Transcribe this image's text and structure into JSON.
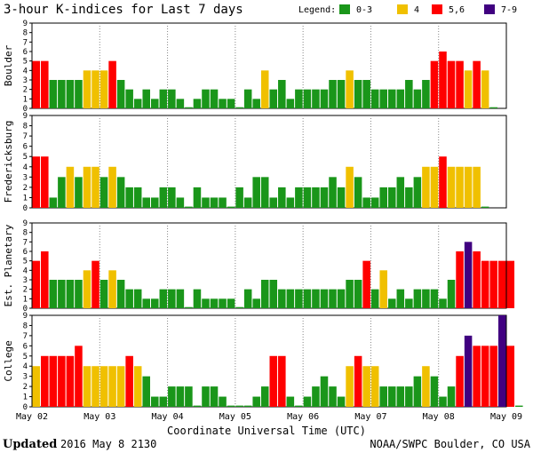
{
  "chart_data": {
    "type": "bar",
    "title": "3-hour K-indices for Last 7 days",
    "legend": {
      "label": "Legend:",
      "placement": "top-right",
      "entries": [
        {
          "label": "0-3",
          "color": "#1a961a"
        },
        {
          "label": "4",
          "color": "#f0c000"
        },
        {
          "label": "5,6",
          "color": "#ff0000"
        },
        {
          "label": "7-9",
          "color": "#400080"
        }
      ]
    },
    "color_rule": {
      "quiet": "#1a961a",
      "unsettled": "#f0c000",
      "storm": "#ff0000",
      "severe": "#400080"
    },
    "xlabel": "Coordinate Universal Time (UTC)",
    "ylim": [
      0,
      9
    ],
    "yticks": [
      "0",
      "1",
      "2",
      "3",
      "4",
      "5",
      "6",
      "7",
      "8",
      "9"
    ],
    "day_labels": [
      "May 02",
      "May 03",
      "May 04",
      "May 05",
      "May 06",
      "May 07",
      "May 08",
      "May 09"
    ],
    "intervals_per_day": 8,
    "series": [
      {
        "name": "Boulder",
        "values": [
          5,
          5,
          3,
          3,
          3,
          3,
          4,
          4,
          4,
          5,
          3,
          2,
          1,
          2,
          1,
          2,
          2,
          1,
          0,
          1,
          2,
          2,
          1,
          1,
          0,
          2,
          1,
          4,
          2,
          3,
          1,
          2,
          2,
          2,
          2,
          3,
          3,
          4,
          3,
          3,
          2,
          2,
          2,
          2,
          3,
          2,
          3,
          5,
          6,
          5,
          5,
          4,
          5,
          4,
          0
        ]
      },
      {
        "name": "Fredericksburg",
        "values": [
          5,
          5,
          1,
          3,
          4,
          3,
          4,
          4,
          3,
          4,
          3,
          2,
          2,
          1,
          1,
          2,
          2,
          1,
          0,
          2,
          1,
          1,
          1,
          0,
          2,
          1,
          3,
          3,
          1,
          2,
          1,
          2,
          2,
          2,
          2,
          3,
          2,
          4,
          3,
          1,
          1,
          2,
          2,
          3,
          2,
          3,
          4,
          4,
          5,
          4,
          4,
          4,
          4,
          0
        ]
      },
      {
        "name": "Est. Planetary",
        "values": [
          5,
          6,
          3,
          3,
          3,
          3,
          4,
          5,
          3,
          4,
          3,
          2,
          2,
          1,
          1,
          2,
          2,
          2,
          0,
          2,
          1,
          1,
          1,
          1,
          0,
          2,
          1,
          3,
          3,
          2,
          2,
          2,
          2,
          2,
          2,
          2,
          2,
          3,
          3,
          5,
          2,
          4,
          1,
          2,
          1,
          2,
          2,
          2,
          1,
          3,
          6,
          7,
          6,
          5,
          5,
          5,
          5
        ]
      },
      {
        "name": "College",
        "values": [
          4,
          5,
          5,
          5,
          5,
          6,
          4,
          4,
          4,
          4,
          4,
          5,
          4,
          3,
          1,
          1,
          2,
          2,
          2,
          0,
          2,
          2,
          1,
          0,
          0,
          0,
          1,
          2,
          5,
          5,
          1,
          0,
          1,
          2,
          3,
          2,
          1,
          4,
          5,
          4,
          4,
          2,
          2,
          2,
          2,
          3,
          4,
          3,
          1,
          2,
          5,
          7,
          6,
          6,
          6,
          9,
          6,
          0
        ]
      }
    ]
  },
  "footer": {
    "updated_label": "Updated",
    "updated_value": "2016 May  8 2130",
    "credit": "NOAA/SWPC Boulder, CO USA"
  }
}
